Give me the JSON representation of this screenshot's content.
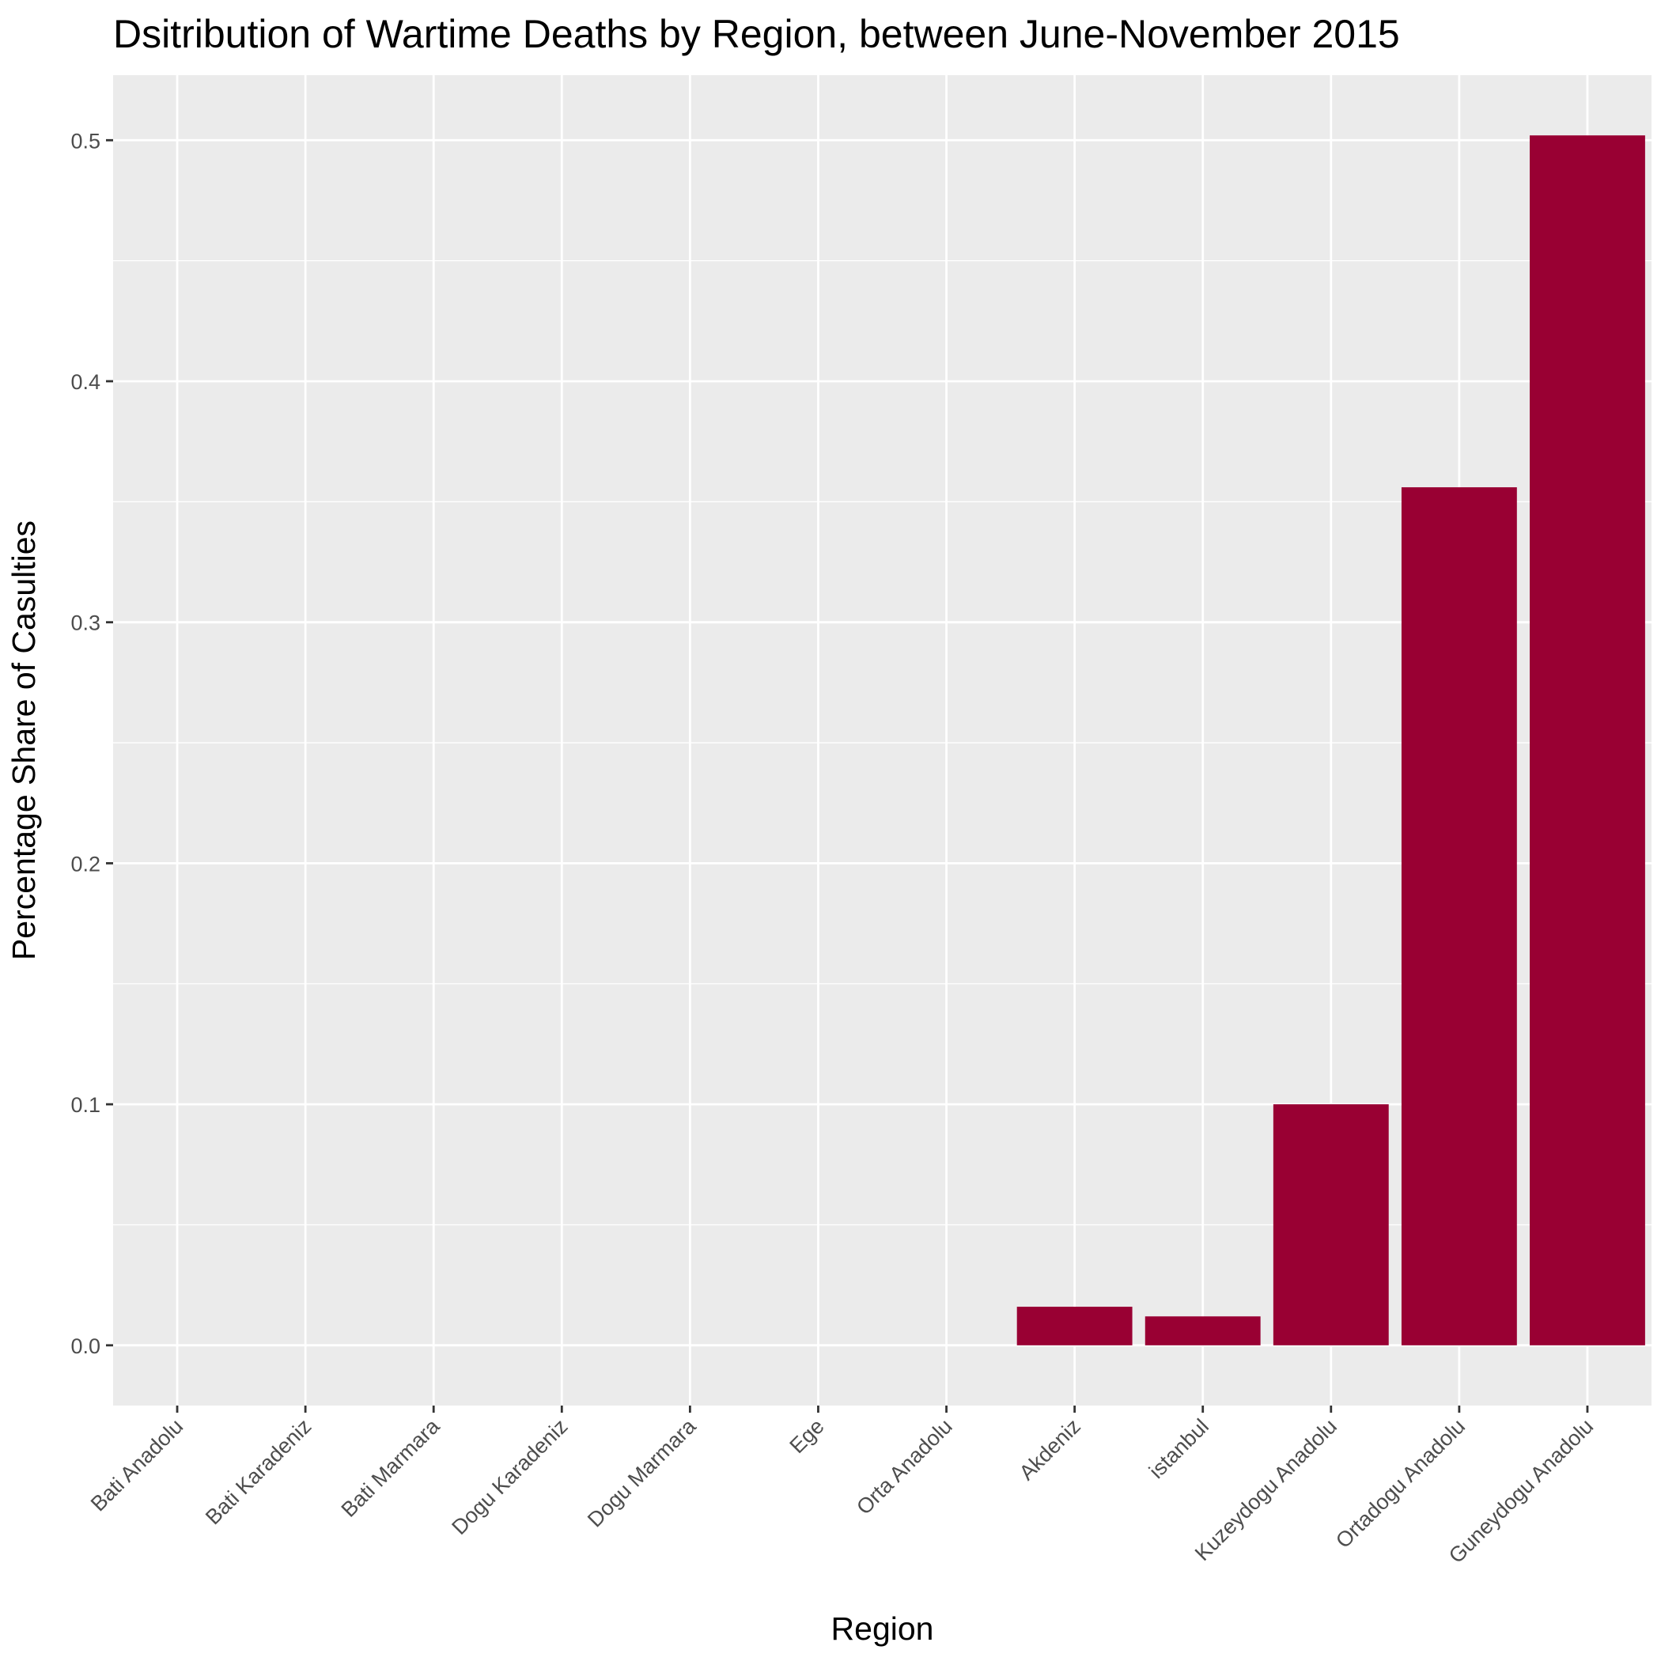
{
  "chart_data": {
    "type": "bar",
    "title": "Dsitribution of Wartime Deaths by Region, between June-November 2015",
    "xlabel": "Region",
    "ylabel": "Percentage Share of Casulties",
    "categories": [
      "Bati Anadolu",
      "Bati Karadeniz",
      "Bati Marmara",
      "Dogu Karadeniz",
      "Dogu Marmara",
      "Ege",
      "Orta Anadolu",
      "Akdeniz",
      "istanbul",
      "Kuzeydogu Anadolu",
      "Ortadogu Anadolu",
      "Guneydogu Anadolu"
    ],
    "values": [
      0,
      0,
      0,
      0,
      0,
      0,
      0,
      0.016,
      0.012,
      0.1,
      0.356,
      0.502
    ],
    "yticks": [
      0.0,
      0.1,
      0.2,
      0.3,
      0.4,
      0.5
    ],
    "ytick_labels": [
      "0.0",
      "0.1",
      "0.2",
      "0.3",
      "0.4",
      "0.5"
    ],
    "ylim": [
      -0.025,
      0.527
    ],
    "grid": true,
    "legend": "none",
    "colors": {
      "bar": "#990033",
      "panel_background": "#ebebeb",
      "grid": "#ffffff",
      "tick": "#333333",
      "tick_label": "#4d4d4d"
    }
  }
}
